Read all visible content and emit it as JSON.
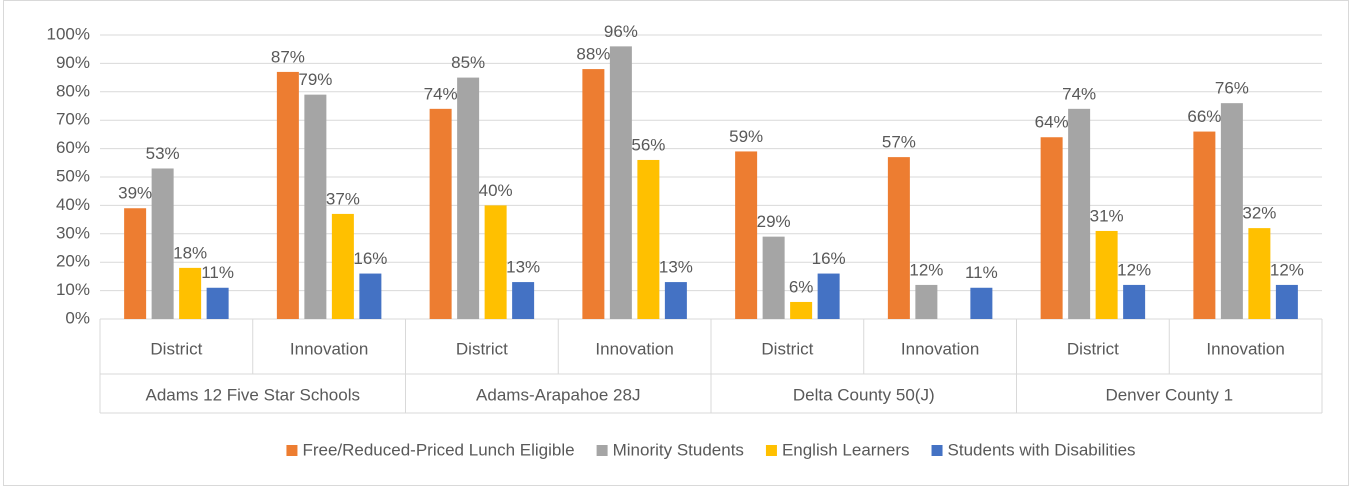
{
  "chart_data": {
    "type": "bar",
    "groups": [
      {
        "name": "Adams 12 Five Star Schools",
        "categories": [
          "District",
          "Innovation"
        ]
      },
      {
        "name": "Adams-Arapahoe 28J",
        "categories": [
          "District",
          "Innovation"
        ]
      },
      {
        "name": "Delta County 50(J)",
        "categories": [
          "District",
          "Innovation"
        ]
      },
      {
        "name": "Denver County 1",
        "categories": [
          "District",
          "Innovation"
        ]
      }
    ],
    "series": [
      {
        "name": "Free/Reduced-Priced Lunch Eligible",
        "color": "#ED7D31",
        "values": [
          39,
          87,
          74,
          88,
          59,
          57,
          64,
          66
        ],
        "value_labels": [
          "39%",
          "87%",
          "74%",
          "88%",
          "59%",
          "57%",
          "64%",
          "66%"
        ]
      },
      {
        "name": "Minority Students",
        "color": "#A5A5A5",
        "values": [
          53,
          79,
          85,
          96,
          29,
          12,
          74,
          76
        ],
        "value_labels": [
          "53%",
          "79%",
          "85%",
          "96%",
          "29%",
          "12%",
          "74%",
          "76%"
        ]
      },
      {
        "name": "English Learners",
        "color": "#FFC000",
        "values": [
          18,
          37,
          40,
          56,
          6,
          null,
          31,
          32
        ],
        "value_labels": [
          "18%",
          "37%",
          "40%",
          "56%",
          "6%",
          null,
          "31%",
          "32%"
        ]
      },
      {
        "name": "Students with Disabilities",
        "color": "#4472C4",
        "values": [
          11,
          16,
          13,
          13,
          16,
          11,
          12,
          12
        ],
        "value_labels": [
          "11%",
          "16%",
          "13%",
          "13%",
          "16%",
          "11%",
          "12%",
          "12%"
        ]
      }
    ],
    "ylim": [
      0,
      100
    ],
    "yticks": [
      {
        "value": 0,
        "label": "0%"
      },
      {
        "value": 10,
        "label": "10%"
      },
      {
        "value": 20,
        "label": "20%"
      },
      {
        "value": 30,
        "label": "30%"
      },
      {
        "value": 40,
        "label": "40%"
      },
      {
        "value": 50,
        "label": "50%"
      },
      {
        "value": 60,
        "label": "60%"
      },
      {
        "value": 70,
        "label": "70%"
      },
      {
        "value": 80,
        "label": "80%"
      },
      {
        "value": 90,
        "label": "90%"
      },
      {
        "value": 100,
        "label": "100%"
      }
    ],
    "grid": true,
    "legend": "bottom"
  }
}
